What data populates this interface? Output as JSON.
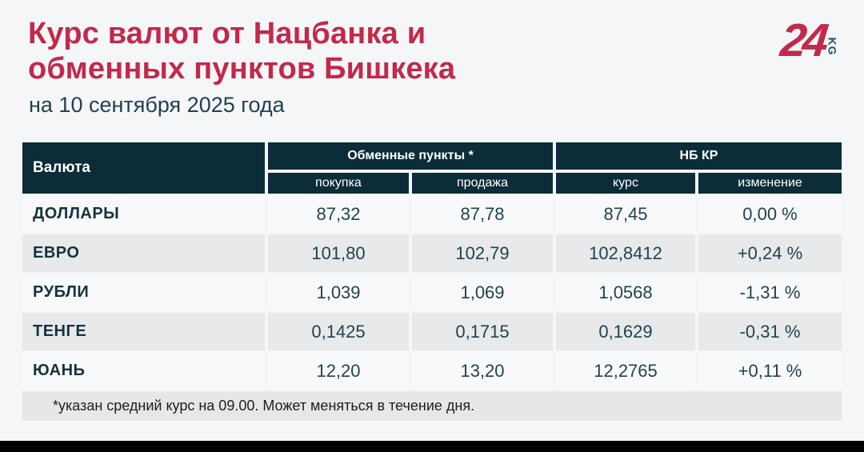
{
  "page": {
    "title": "Курс валют от Нацбанка и обменных пунктов Бишкека",
    "subtitle": "на 10 сентября 2025 года",
    "footnote": "*указан средний курс на 09.00. Может меняться в течение дня."
  },
  "logo": {
    "number": "24",
    "suffix": "KG"
  },
  "colors": {
    "accent_red": "#c2294b",
    "header_bg": "#0c2c39",
    "row_even_bg": "#e7e9ea",
    "row_odd_bg": "#f8f9fa",
    "footnote_bg": "#e5e7e9",
    "text_dark": "#23424f",
    "page_bg": "#f5f6f8",
    "logo_kg": "#1d5068"
  },
  "table": {
    "col_currency": "Валюта",
    "group_exchange": "Обменные пункты *",
    "group_nbkr": "НБ КР",
    "sub_buy": "покупка",
    "sub_sell": "продажа",
    "sub_rate": "курс",
    "sub_change": "изменение"
  },
  "chart_data": {
    "type": "table",
    "title": "Курс валют от Нацбанка и обменных пунктов Бишкека",
    "subtitle": "на 10 сентября 2025 года",
    "columns": [
      "Валюта",
      "Обменные пункты — покупка",
      "Обменные пункты — продажа",
      "НБ КР — курс",
      "НБ КР — изменение"
    ],
    "rows": [
      {
        "currency": "ДОЛЛАРЫ",
        "buy": "87,32",
        "sell": "87,78",
        "rate": "87,45",
        "change": "0,00 %"
      },
      {
        "currency": "ЕВРО",
        "buy": "101,80",
        "sell": "102,79",
        "rate": "102,8412",
        "change": "+0,24 %"
      },
      {
        "currency": "РУБЛИ",
        "buy": "1,039",
        "sell": "1,069",
        "rate": "1,0568",
        "change": "-1,31 %"
      },
      {
        "currency": "ТЕНГЕ",
        "buy": "0,1425",
        "sell": "0,1715",
        "rate": "0,1629",
        "change": "-0,31 %"
      },
      {
        "currency": "ЮАНЬ",
        "buy": "12,20",
        "sell": "13,20",
        "rate": "12,2765",
        "change": "+0,11 %"
      }
    ],
    "footnote": "*указан средний курс на 09.00. Может меняться в течение дня."
  }
}
